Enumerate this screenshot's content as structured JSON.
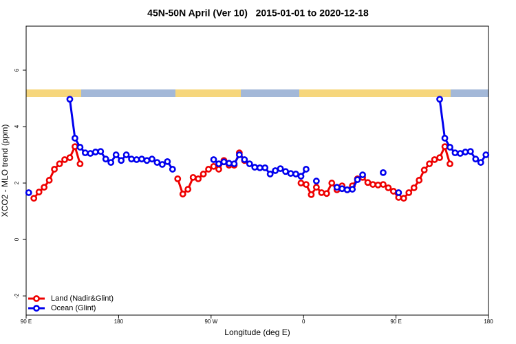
{
  "chart_data": {
    "type": "line",
    "title": "45N-50N April (Ver 10)   2015-01-01 to 2020-12-18",
    "xlabel": "Longitude (deg E)",
    "ylabel": "XCO2 - MLO trend (ppm)",
    "xlim": [
      90,
      540
    ],
    "ylim": [
      -2.68,
      7.56
    ],
    "xticks": [
      {
        "value": 90,
        "label": "90 E"
      },
      180,
      {
        "value": 270,
        "label": "90 W"
      },
      {
        "value": 360,
        "label": "0"
      },
      {
        "value": 450,
        "label": "90 E"
      },
      {
        "value": 540,
        "label": "180"
      }
    ],
    "yticks": [
      -2,
      0,
      2,
      4,
      6
    ],
    "grid": false,
    "legend": "bottom-left",
    "series": [
      {
        "name": "Land (Nadir&Glint)",
        "color": "#ee0000",
        "x": [
          97.5,
          102.5,
          107.5,
          112.5,
          117.5,
          122.5,
          127.5,
          132.5,
          137.5,
          142.5,
          147.5,
          237.5,
          242.5,
          247.5,
          252.5,
          257.5,
          262.5,
          267.5,
          272.5,
          277.5,
          282.5,
          287.5,
          292.5,
          297.5,
          302.5,
          307.5,
          357.5,
          362.5,
          367.5,
          372.5,
          377.5,
          382.5,
          387.5,
          392.5,
          397.5,
          402.5,
          407.5,
          412.5,
          417.5,
          422.5,
          427.5,
          432.5,
          437.5,
          442.5,
          447.5,
          452.5,
          457.5,
          462.5,
          467.5,
          472.5,
          477.5,
          482.5,
          487.5,
          492.5,
          497.5,
          502.5
        ],
        "values": [
          1.46,
          1.68,
          1.85,
          2.1,
          2.49,
          2.68,
          2.83,
          2.9,
          3.29,
          2.68,
          null,
          2.15,
          1.61,
          1.78,
          2.2,
          2.15,
          2.32,
          2.49,
          2.59,
          2.49,
          2.8,
          2.63,
          2.63,
          3.07,
          2.8,
          null,
          2.0,
          1.95,
          1.59,
          1.85,
          1.66,
          1.63,
          2.0,
          1.76,
          1.9,
          1.76,
          1.9,
          2.15,
          2.2,
          2.02,
          1.95,
          1.93,
          1.95,
          1.83,
          1.71,
          1.49,
          1.46,
          1.66,
          1.83,
          2.1,
          2.46,
          2.68,
          2.83,
          2.9,
          3.29,
          2.68
        ]
      },
      {
        "name": "Ocean (Glint)",
        "color": "#0000ee",
        "x": [
          92.5,
          97.5,
          132.5,
          137.5,
          142.5,
          147.5,
          152.5,
          157.5,
          162.5,
          167.5,
          172.5,
          177.5,
          182.5,
          187.5,
          192.5,
          197.5,
          202.5,
          207.5,
          212.5,
          217.5,
          222.5,
          227.5,
          232.5,
          237.5,
          272.5,
          277.5,
          282.5,
          287.5,
          292.5,
          297.5,
          302.5,
          307.5,
          312.5,
          317.5,
          322.5,
          327.5,
          332.5,
          337.5,
          342.5,
          347.5,
          352.5,
          357.5,
          362.5,
          367.5,
          372.5,
          377.5,
          392.5,
          397.5,
          402.5,
          407.5,
          412.5,
          417.5,
          422.5,
          437.5,
          442.5,
          452.5,
          457.5,
          492.5,
          497.5,
          502.5,
          507.5,
          512.5,
          517.5,
          522.5,
          527.5,
          532.5,
          537.5
        ],
        "values": [
          1.66,
          null,
          4.97,
          3.59,
          3.27,
          3.07,
          3.05,
          3.1,
          3.12,
          2.85,
          2.73,
          3.0,
          2.8,
          3.0,
          2.85,
          2.83,
          2.85,
          2.8,
          2.85,
          2.73,
          2.66,
          2.76,
          2.49,
          null,
          2.83,
          2.68,
          2.75,
          2.7,
          2.68,
          3.0,
          2.83,
          2.68,
          2.56,
          2.54,
          2.54,
          2.32,
          2.44,
          2.51,
          2.41,
          2.34,
          2.32,
          2.24,
          2.49,
          null,
          2.07,
          null,
          1.85,
          1.8,
          1.76,
          1.78,
          2.12,
          2.29,
          null,
          2.37,
          null,
          1.66,
          null,
          4.97,
          3.59,
          3.27,
          3.07,
          3.05,
          3.1,
          3.12,
          2.85,
          2.73,
          3.0
        ]
      }
    ]
  }
}
